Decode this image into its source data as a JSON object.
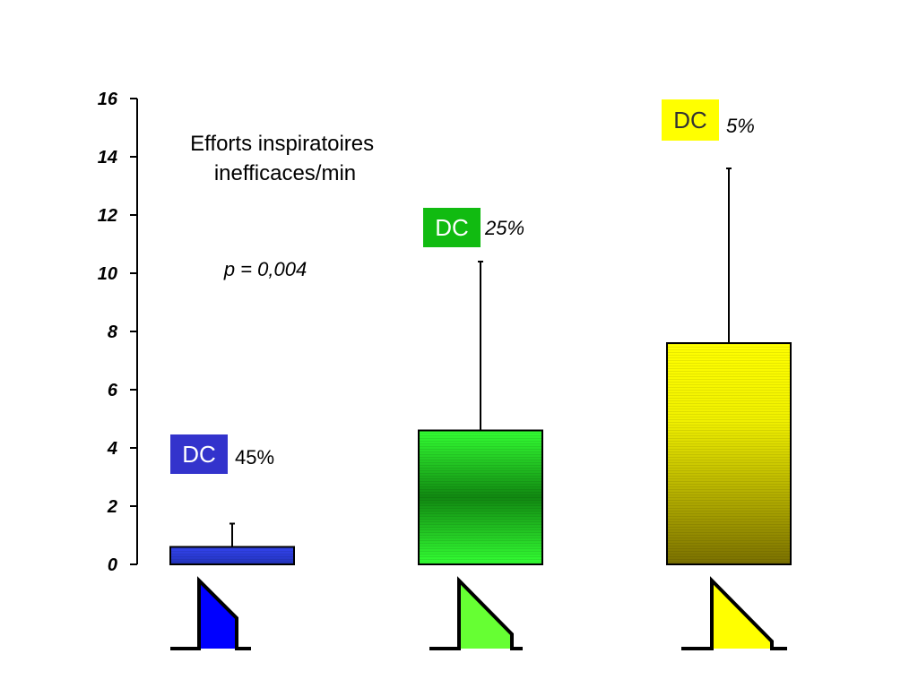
{
  "chart_data": {
    "type": "bar",
    "title": "Efforts inspiratoires\ninefficaces/min",
    "annotation": "p = 0,004",
    "ylim": [
      0,
      16
    ],
    "yticks": [
      0,
      2,
      4,
      6,
      8,
      10,
      12,
      14,
      16
    ],
    "grid": false,
    "bars": [
      {
        "value": 0.6,
        "error_upper": 1.4,
        "badge": "DC",
        "percent": "45%",
        "percent_italic": false,
        "color": "#3333cc",
        "waveform_color": "#0000ff"
      },
      {
        "value": 4.6,
        "error_upper": 10.4,
        "badge": "DC",
        "percent": "25%",
        "percent_italic": true,
        "color": "#22dd22",
        "waveform_color": "#66ff33"
      },
      {
        "value": 7.6,
        "error_upper": 13.6,
        "badge": "DC",
        "percent": "5%",
        "percent_italic": true,
        "color": "#ffff00",
        "waveform_color": "#ffff00"
      }
    ]
  }
}
